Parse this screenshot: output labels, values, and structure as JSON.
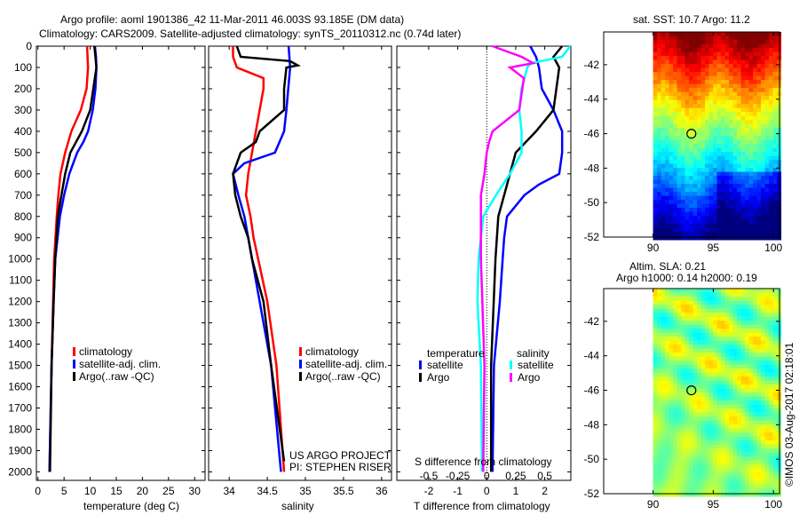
{
  "title_line1": "Argo profile: aoml 1901386_42 11-Mar-2011 46.003S 93.185E (DM data)",
  "title_line2": "Climatology: CARS2009. Satellite-adjusted climatology: synTS_20110312.nc (0.74d later)",
  "colors": {
    "climatology": "#ff0000",
    "satellite": "#0000ff",
    "argo": "#000000",
    "sal_satellite": "#00ffff",
    "sal_argo": "#ff00ff"
  },
  "chart_data": [
    {
      "type": "line",
      "xlabel": "temperature (deg C)",
      "ylabel": "",
      "xticks": [
        0,
        5,
        10,
        15,
        20,
        25,
        30
      ],
      "yticks": [
        0,
        100,
        200,
        300,
        400,
        500,
        600,
        700,
        800,
        900,
        1000,
        1100,
        1200,
        1300,
        1400,
        1500,
        1600,
        1700,
        1800,
        1900,
        2000
      ],
      "xlim": [
        -0.3,
        32
      ],
      "ylim": [
        2040,
        0
      ],
      "legend": [
        "climatology",
        "satellite-adj. clim.",
        "Argo(..raw -QC)"
      ],
      "series": [
        {
          "name": "climatology",
          "depth": [
            0,
            50,
            100,
            200,
            300,
            400,
            500,
            600,
            700,
            800,
            1000,
            1200,
            1500,
            2000
          ],
          "values": [
            9.4,
            9.5,
            9.6,
            9.3,
            8.2,
            6.4,
            5.2,
            4.3,
            3.9,
            3.6,
            3.1,
            2.9,
            2.6,
            2.2
          ]
        },
        {
          "name": "satellite-adj. clim.",
          "depth": [
            0,
            50,
            100,
            200,
            300,
            400,
            450,
            500,
            600,
            700,
            800,
            1000,
            1200,
            1500,
            2000
          ],
          "values": [
            10.9,
            11.1,
            11.2,
            11.0,
            10.5,
            9.6,
            8.7,
            7.5,
            6.0,
            5.0,
            4.2,
            3.3,
            3.0,
            2.6,
            2.2
          ]
        },
        {
          "name": "Argo(..raw -QC)",
          "depth": [
            0,
            50,
            100,
            200,
            300,
            400,
            500,
            600,
            700,
            800,
            1000,
            1200,
            1500,
            2000
          ],
          "values": [
            10.8,
            11.0,
            11.2,
            10.6,
            10.0,
            8.4,
            6.2,
            5.2,
            4.5,
            3.8,
            3.3,
            3.0,
            2.6,
            2.3
          ]
        }
      ]
    },
    {
      "type": "line",
      "xlabel": "salinity",
      "xticks": [
        34,
        34.5,
        35,
        35.5,
        36
      ],
      "xlim": [
        33.73,
        36.13
      ],
      "ylim": [
        2040,
        0
      ],
      "legend": [
        "climatology",
        "satellite-adj. clim.",
        "Argo(..raw -QC)"
      ],
      "series": [
        {
          "name": "climatology",
          "depth": [
            0,
            50,
            100,
            150,
            200,
            300,
            400,
            500,
            600,
            700,
            800,
            900,
            1000,
            1200,
            1500,
            2000
          ],
          "values": [
            34.05,
            34.05,
            34.1,
            34.45,
            34.45,
            34.4,
            34.35,
            34.3,
            34.25,
            34.22,
            34.28,
            34.32,
            34.38,
            34.5,
            34.62,
            34.72
          ]
        },
        {
          "name": "satellite-adj. clim.",
          "depth": [
            0,
            100,
            300,
            400,
            500,
            550,
            600,
            700,
            800,
            900,
            1000,
            1200,
            1500,
            2000
          ],
          "values": [
            34.78,
            34.8,
            34.75,
            34.72,
            34.6,
            34.2,
            34.05,
            34.12,
            34.2,
            34.25,
            34.3,
            34.4,
            34.55,
            34.68
          ]
        },
        {
          "name": "Argo(..raw -QC)",
          "depth": [
            0,
            50,
            70,
            90,
            100,
            200,
            300,
            400,
            450,
            500,
            600,
            700,
            800,
            900,
            1000,
            1200,
            1500,
            1950
          ],
          "values": [
            34.1,
            34.15,
            34.8,
            34.9,
            34.75,
            34.72,
            34.72,
            34.4,
            34.35,
            34.15,
            34.05,
            34.08,
            34.15,
            34.25,
            34.3,
            34.45,
            34.55,
            34.72
          ]
        }
      ]
    },
    {
      "type": "line",
      "xlabel": "T difference from climatology",
      "xlabel2": "S difference from climatology",
      "xticks": [
        -2,
        -1,
        0,
        1,
        2
      ],
      "xticks2": [
        -0.5,
        -0.25,
        0,
        0.25,
        0.5
      ],
      "xlim": [
        -3.1,
        2.9
      ],
      "ylim": [
        2040,
        0
      ],
      "legend_title_t": "temperature",
      "legend_title_s": "salinity",
      "legend_t": [
        "satellite",
        "Argo"
      ],
      "legend_s": [
        "satellite",
        "Argo"
      ],
      "series": [
        {
          "name": "T satellite",
          "axis": "T",
          "depth": [
            0,
            50,
            100,
            200,
            300,
            400,
            500,
            600,
            650,
            700,
            800,
            900,
            1000,
            1200,
            1500,
            2000
          ],
          "values": [
            1.5,
            1.7,
            1.8,
            1.9,
            2.3,
            2.6,
            2.6,
            2.5,
            1.8,
            1.3,
            0.7,
            0.6,
            0.55,
            0.45,
            0.25,
            0.2
          ]
        },
        {
          "name": "T Argo",
          "axis": "T",
          "depth": [
            0,
            50,
            100,
            200,
            300,
            400,
            500,
            600,
            700,
            800,
            1000,
            1500,
            2000
          ],
          "values": [
            2.6,
            2.3,
            2.5,
            2.4,
            2.3,
            1.7,
            1.0,
            0.8,
            0.6,
            0.4,
            0.3,
            0.15,
            0.15
          ]
        },
        {
          "name": "S satellite",
          "axis": "S",
          "depth": [
            0,
            50,
            80,
            100,
            200,
            300,
            400,
            500,
            600,
            700,
            800,
            900,
            1000,
            1200,
            1500,
            2000
          ],
          "values": [
            0.72,
            0.65,
            0.38,
            0.35,
            0.3,
            0.28,
            0.3,
            0.3,
            0.2,
            0.08,
            -0.03,
            -0.05,
            -0.07,
            -0.08,
            -0.05,
            -0.04
          ]
        },
        {
          "name": "S Argo",
          "axis": "S",
          "depth": [
            0,
            50,
            80,
            100,
            150,
            300,
            400,
            450,
            500,
            600,
            700,
            900,
            1000,
            1500,
            2000
          ],
          "values": [
            0.05,
            0.3,
            0.4,
            0.2,
            0.32,
            0.28,
            0.05,
            0.02,
            0,
            -0.02,
            -0.05,
            -0.05,
            -0.05,
            -0.02,
            -0.03
          ]
        }
      ]
    },
    {
      "type": "heatmap",
      "title": "sat. SST: 10.7 Argo: 11.2",
      "xticks": [
        90,
        95,
        100
      ],
      "yticks": [
        -42,
        -44,
        -46,
        -48,
        -50,
        -52
      ],
      "xlim": [
        85.9,
        100.5
      ],
      "ylim": [
        -52,
        -40.1
      ],
      "marker": {
        "lon": 93.185,
        "lat": -46.003
      }
    },
    {
      "type": "heatmap",
      "title_line1": "Altim. SLA: 0.21",
      "title_line2": "Argo h1000: 0.14 h2000: 0.19",
      "xticks": [
        90,
        95,
        100
      ],
      "yticks": [
        -42,
        -44,
        -46,
        -48,
        -50,
        -52
      ],
      "xlim": [
        85.9,
        100.5
      ],
      "ylim": [
        -52,
        -40.1
      ],
      "marker": {
        "lon": 93.185,
        "lat": -46.003
      }
    }
  ],
  "credit": [
    "US ARGO PROJECT",
    "PI: STEPHEN RISER"
  ],
  "timestamp": "©IMOS 03-Aug-2017 02:18:01"
}
